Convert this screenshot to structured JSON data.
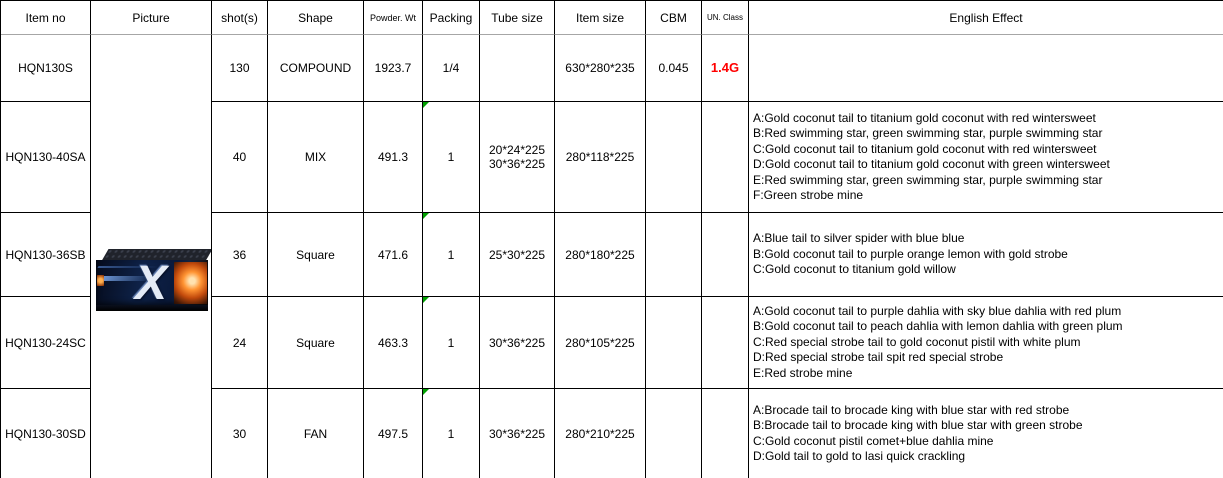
{
  "table": {
    "headers": {
      "item_no": "Item no",
      "picture": "Picture",
      "shots": "shot(s)",
      "shape": "Shape",
      "powder_wt": "Powder. Wt",
      "packing": "Packing",
      "tube_size": "Tube size",
      "item_size": "Item size",
      "cbm": "CBM",
      "un_class": "UN. Class",
      "english_effect": "English Effect"
    },
    "colors": {
      "un_class_red": "#FF0000",
      "error_triangle_green": "#00A000",
      "header_divider_gray": "#A6A6A6"
    },
    "picture_box": {
      "label": "X"
    },
    "rows": [
      {
        "item_no": "HQN130S",
        "shots": "130",
        "shape": "COMPOUND",
        "powder_wt": "1923.7",
        "packing": "1/4",
        "tube_size": [],
        "item_size": "630*280*235",
        "cbm": "0.045",
        "un_class": "1.4G",
        "effects": []
      },
      {
        "item_no": "HQN130-40SA",
        "shots": "40",
        "shape": "MIX",
        "powder_wt": "491.3",
        "packing": "1",
        "tube_size": [
          "20*24*225",
          "30*36*225"
        ],
        "item_size": "280*118*225",
        "cbm": "",
        "un_class": "",
        "effects": [
          "A:Gold coconut tail to titanium gold coconut with red wintersweet",
          "B:Red swimming star, green swimming star, purple swimming star",
          "C:Gold coconut tail to titanium gold coconut with red wintersweet",
          "D:Gold coconut tail to titanium gold coconut with green wintersweet",
          "E:Red swimming star, green swimming star, purple swimming star",
          "F:Green strobe mine"
        ]
      },
      {
        "item_no": "HQN130-36SB",
        "shots": "36",
        "shape": "Square",
        "powder_wt": "471.6",
        "packing": "1",
        "tube_size": [
          "25*30*225"
        ],
        "item_size": "280*180*225",
        "cbm": "",
        "un_class": "",
        "effects": [
          "A:Blue tail to silver spider with blue blue",
          "B:Gold coconut tail to purple orange lemon with gold strobe",
          "C:Gold coconut to titanium gold willow"
        ]
      },
      {
        "item_no": "HQN130-24SC",
        "shots": "24",
        "shape": "Square",
        "powder_wt": "463.3",
        "packing": "1",
        "tube_size": [
          "30*36*225"
        ],
        "item_size": "280*105*225",
        "cbm": "",
        "un_class": "",
        "effects": [
          "A:Gold coconut tail to purple dahlia with sky blue dahlia with red plum",
          "B:Gold coconut tail to peach dahlia with lemon dahlia with green plum",
          "C:Red special strobe tail to gold coconut pistil with white plum",
          "D:Red special strobe tail spit red special strobe",
          "E:Red strobe mine"
        ]
      },
      {
        "item_no": "HQN130-30SD",
        "shots": "30",
        "shape": "FAN",
        "powder_wt": "497.5",
        "packing": "1",
        "tube_size": [
          "30*36*225"
        ],
        "item_size": "280*210*225",
        "cbm": "",
        "un_class": "",
        "effects": [
          "A:Brocade tail to brocade king with blue star with red strobe",
          "B:Brocade tail to brocade king with blue star with green strobe",
          "C:Gold coconut pistil comet+blue dahlia mine",
          "D:Gold tail to gold to lasi quick crackling"
        ]
      }
    ]
  }
}
